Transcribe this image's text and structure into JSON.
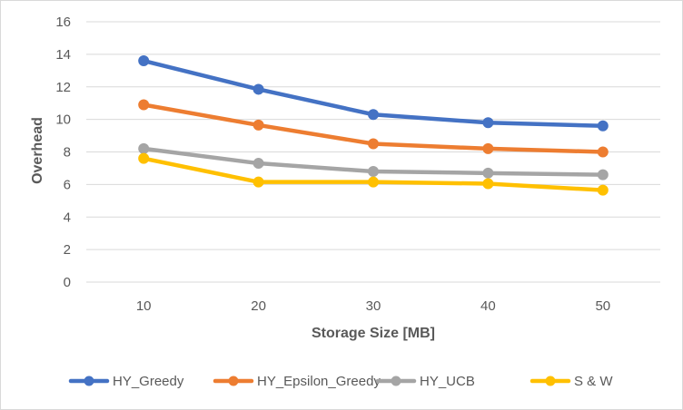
{
  "chart_data": {
    "type": "line",
    "title": "",
    "xlabel": "Storage Size [MB]",
    "ylabel": "Overhead",
    "categories": [
      "10",
      "20",
      "30",
      "40",
      "50"
    ],
    "ylim": [
      0,
      16
    ],
    "yticks": [
      0,
      2,
      4,
      6,
      8,
      10,
      12,
      14,
      16
    ],
    "grid": true,
    "legend_position": "bottom",
    "series": [
      {
        "name": "HY_Greedy",
        "color": "#4472C4",
        "values": [
          13.6,
          11.85,
          10.3,
          9.8,
          9.6
        ]
      },
      {
        "name": "HY_Epsilon_Greedy",
        "color": "#ED7D31",
        "values": [
          10.9,
          9.65,
          8.5,
          8.2,
          8.0
        ]
      },
      {
        "name": "HY_UCB",
        "color": "#A5A5A5",
        "values": [
          8.2,
          7.3,
          6.8,
          6.7,
          6.6
        ]
      },
      {
        "name": "S & W",
        "color": "#FFC000",
        "values": [
          7.6,
          6.15,
          6.15,
          6.05,
          5.65
        ]
      }
    ]
  }
}
